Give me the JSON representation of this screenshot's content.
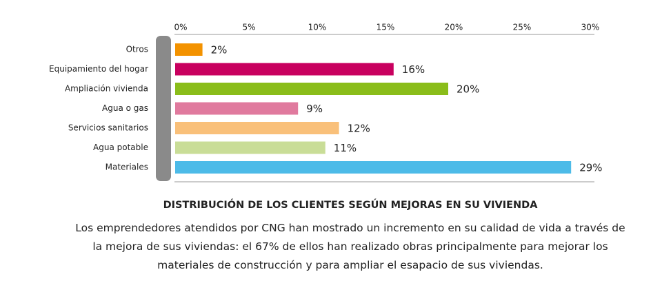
{
  "chart_data": {
    "type": "bar",
    "orientation": "horizontal",
    "title": "DISTRIBUCIÓN DE LOS CLIENTES SEGÚN MEJORAS EN SU VIVIENDA",
    "subtitle": "Los emprendedores atendidos por CNG han mostrado un incremento en su calidad de vida a través de la mejora de sus viviendas: el 67% de ellos han realizado obras principalmente para mejorar los materiales de construcción y para ampliar el esapacio de sus viviendas.",
    "categories": [
      "Otros",
      "Equipamiento del hogar",
      "Ampliación vivienda",
      "Agua o gas",
      "Servicios sanitarios",
      "Agua potable",
      "Materiales"
    ],
    "values": [
      2,
      16,
      20,
      9,
      12,
      11,
      29
    ],
    "value_labels": [
      "2%",
      "16%",
      "20%",
      "9%",
      "12%",
      "11%",
      "29%"
    ],
    "colors": [
      "#f39200",
      "#c8005f",
      "#8abd1a",
      "#e07a9e",
      "#f9c07a",
      "#c9dd97",
      "#4dbbe8"
    ],
    "xlim": [
      0,
      30
    ],
    "xticks": [
      {
        "value": 0,
        "label": "0%"
      },
      {
        "value": 5,
        "label": "5%"
      },
      {
        "value": 10,
        "label": "10%"
      },
      {
        "value": 15,
        "label": "15%"
      },
      {
        "value": 20,
        "label": "20%"
      },
      {
        "value": 25,
        "label": "25%"
      },
      {
        "value": 30,
        "label": "30%"
      }
    ]
  }
}
